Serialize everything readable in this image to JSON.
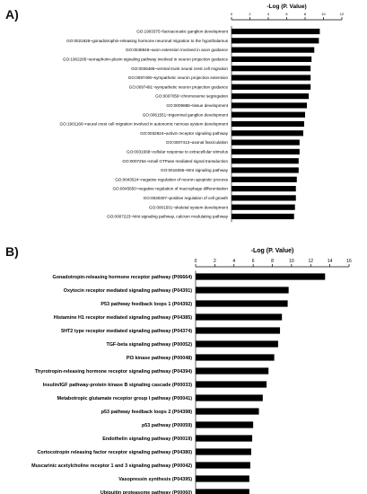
{
  "chart_data": [
    {
      "panel_label": "A)",
      "type": "bar",
      "orientation": "horizontal",
      "xlabel": "-Log (P. Value)",
      "xaxis_position": "top",
      "xlim": [
        0,
        12
      ],
      "xticks": [
        0,
        2,
        4,
        6,
        8,
        10,
        12
      ],
      "grid": false,
      "bar_color": "#000000",
      "categories": [
        "GO:1903375~facioacoustic ganglion development",
        "GO:0021828~gonadotrophin-releasing hormone neuronal migration to the hypothalamus",
        "GO:0048846~axon extension involved in axon guidance",
        "GO:1902285~semaphorin-plexin signaling pathway involved in neuron projection guidance",
        "GO:0036486~ventral trunk neural crest cell migration",
        "GO:0097490~sympathetic neuron projection extension",
        "GO:0097491~sympathetic neuron projection guidance",
        "GO:0007059~chromosome segregation",
        "GO:0009888~tissue development",
        "GO:0061551~trigeminal ganglion development",
        "GO:1901166~neural crest cell migration involved in autonomic nervous system development",
        "GO:0032924~activin receptor signaling pathway",
        "GO:0007413~axonal fasciculation",
        "GO:0031668~cellular response to extracellular stimulus",
        "GO:0007264~small GTPase mediated signal transduction",
        "GO:0016055~Wnt signaling pathway",
        "GO:0043524~negative regulation of neuron apoptotic process",
        "GO:0045650~negative regulation of macrophage differentiation",
        "GO:0030307~positive regulation of cell growth",
        "GO:0001501~skeletal system development",
        "GO:0007223~Wnt signaling pathway, calcium modulating pathway"
      ],
      "values": [
        9.6,
        9.5,
        9.0,
        8.7,
        8.6,
        8.6,
        8.6,
        8.4,
        8.2,
        8.0,
        7.9,
        7.8,
        7.4,
        7.4,
        7.3,
        7.3,
        7.1,
        7.0,
        7.0,
        6.9,
        6.8
      ]
    },
    {
      "panel_label": "B)",
      "type": "bar",
      "orientation": "horizontal",
      "xlabel": "-Log (P. Value)",
      "xaxis_position": "top",
      "xlim": [
        0,
        16
      ],
      "xticks": [
        0,
        2,
        4,
        6,
        8,
        10,
        12,
        14,
        16
      ],
      "grid": false,
      "bar_color": "#000000",
      "categories": [
        "Gonadotropin-releasing hormone receptor pathway (P06664)",
        "Oxytocin receptor mediated signaling pathway (P04391)",
        "P53 pathway feedback loops 1 (P04392)",
        "Histamine H1 receptor mediated signaling pathway (P04385)",
        "5HT2 type receptor mediated signaling pathway (P04374)",
        "TGF-beta signaling pathway (P00052)",
        "PI3 kinase pathway (P00048)",
        "Thyrotropin-releasing hormone receptor signaling pathway (P04394)",
        "Insulin/IGF pathway-protein kinase B signaling cascade (P00033)",
        "Metabotropic glutamate receptor group I pathway (P00041)",
        "p53 pathway feedback loops 2 (P04398)",
        "p53 pathway (P00059)",
        "Endothelin signaling pathway (P00019)",
        "Cortocotropin releasing factor receptor signaling pathway (P04380)",
        "Muscarinic acetylcholine receptor 1 and 3 signaling pathway (P00042)",
        "Vasopressin synthesis (P04395)",
        "Ubiquitin proteasome pathway (P00060)"
      ],
      "values": [
        13.5,
        9.7,
        9.6,
        9.0,
        8.8,
        8.6,
        8.2,
        7.6,
        7.4,
        7.0,
        6.6,
        6.0,
        5.9,
        5.8,
        5.7,
        5.6,
        5.6
      ]
    }
  ]
}
